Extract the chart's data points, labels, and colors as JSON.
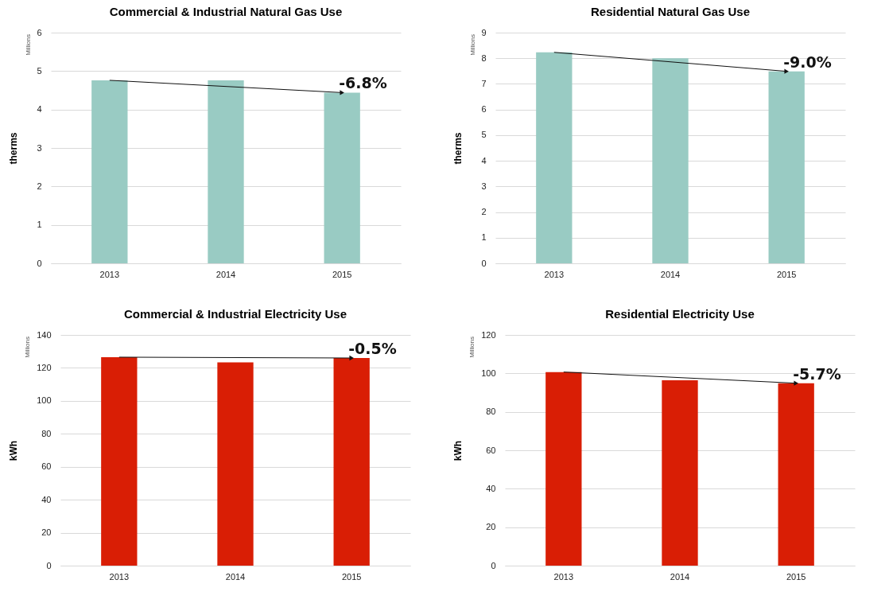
{
  "chart_data": [
    {
      "type": "bar",
      "title": "Commercial & Industrial Natural Gas Use",
      "ylabel": "therms",
      "categories": [
        "2013",
        "2014",
        "2015"
      ],
      "values": [
        4.76,
        4.76,
        4.44
      ],
      "color": "#99cbc3",
      "ylim": [
        0,
        6
      ],
      "yticks": [
        0,
        1,
        2,
        3,
        4,
        5,
        6
      ],
      "grid": "y",
      "annotations": [
        "Millions",
        {
          "text": "-6.8%",
          "x": "2015",
          "y": 4.44
        }
      ]
    },
    {
      "type": "bar",
      "title": "Residential Natural Gas Use",
      "ylabel": "therms",
      "categories": [
        "2013",
        "2014",
        "2015"
      ],
      "values": [
        8.23,
        8.0,
        7.49
      ],
      "color": "#99cbc3",
      "ylim": [
        0,
        9
      ],
      "yticks": [
        0,
        1,
        2,
        3,
        4,
        5,
        6,
        7,
        8,
        9
      ],
      "grid": "y",
      "annotations": [
        "Millions",
        {
          "text": "-9.0%",
          "x": "2015",
          "y": 7.49
        }
      ]
    },
    {
      "type": "bar",
      "title": "Commercial & Industrial Electricity Use",
      "ylabel": "kWh",
      "categories": [
        "2013",
        "2014",
        "2015"
      ],
      "values": [
        126.5,
        123.4,
        126.0
      ],
      "color": "#d91e05",
      "ylim": [
        0,
        140
      ],
      "yticks": [
        0,
        20,
        40,
        60,
        80,
        100,
        120,
        140
      ],
      "grid": "y",
      "annotations": [
        "Millions",
        {
          "text": "-0.5%",
          "x": "2015",
          "y": 126.0
        }
      ]
    },
    {
      "type": "bar",
      "title": "Residential Electricity Use",
      "ylabel": "kWh",
      "categories": [
        "2013",
        "2014",
        "2015"
      ],
      "values": [
        100.7,
        96.4,
        94.9
      ],
      "color": "#d91e05",
      "ylim": [
        0,
        120
      ],
      "yticks": [
        0,
        20,
        40,
        60,
        80,
        100,
        120
      ],
      "grid": "y",
      "annotations": [
        "Millions",
        {
          "text": "-5.7%",
          "x": "2015",
          "y": 94.9
        }
      ]
    }
  ]
}
